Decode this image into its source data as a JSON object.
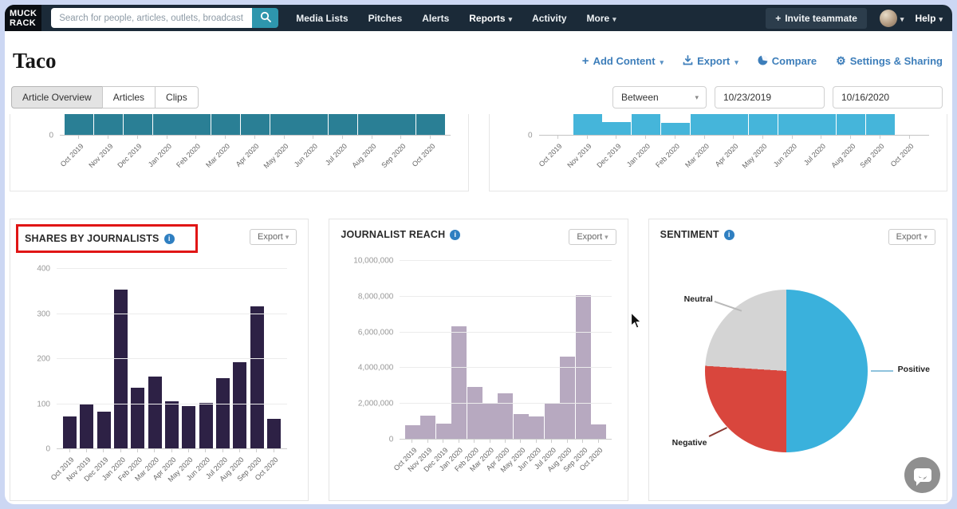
{
  "navbar": {
    "logo_line1": "MUCK",
    "logo_line2": "RACK",
    "search": {
      "placeholder": "Search for people, articles, outlets, broadcast"
    },
    "items": [
      {
        "label": "Media Lists",
        "dropdown": false
      },
      {
        "label": "Pitches",
        "dropdown": false
      },
      {
        "label": "Alerts",
        "dropdown": false
      },
      {
        "label": "Reports",
        "dropdown": true
      },
      {
        "label": "Activity",
        "dropdown": false
      },
      {
        "label": "More",
        "dropdown": true
      }
    ],
    "invite_label": "Invite teammate",
    "help_label": "Help"
  },
  "header": {
    "title": "Taco",
    "actions": [
      {
        "label": "Add Content",
        "icon": "plus-icon",
        "dropdown": true
      },
      {
        "label": "Export",
        "icon": "download-icon",
        "dropdown": true
      },
      {
        "label": "Compare",
        "icon": "pie-icon",
        "dropdown": false
      },
      {
        "label": "Settings & Sharing",
        "icon": "gear-icon",
        "dropdown": false
      }
    ]
  },
  "tabs": [
    {
      "label": "Article Overview",
      "active": true
    },
    {
      "label": "Articles",
      "active": false
    },
    {
      "label": "Clips",
      "active": false
    }
  ],
  "filters": {
    "range_operator": "Between",
    "start_date": "10/23/2019",
    "end_date": "10/16/2020"
  },
  "export_button_label": "Export",
  "months": [
    "Oct 2019",
    "Nov 2019",
    "Dec 2019",
    "Jan 2020",
    "Feb 2020",
    "Mar 2020",
    "Apr 2020",
    "May 2020",
    "Jun 2020",
    "Jul 2020",
    "Aug 2020",
    "Sep 2020",
    "Oct 2020"
  ],
  "chart_data": [
    {
      "type": "bar",
      "title": "",
      "note": "top chart card scrolled - only bottoms of bars visible, values are relative visible heights",
      "clipped_top": true,
      "ylim": [
        0,
        1
      ],
      "yticks": [
        {
          "label": "0",
          "value": 0
        }
      ],
      "values": [
        1,
        1,
        1,
        1,
        1,
        1,
        1,
        1,
        1,
        1,
        1,
        1,
        1
      ],
      "color": "#2a7f95"
    },
    {
      "type": "bar",
      "title": "",
      "note": "top chart card scrolled - only bottoms of bars visible, values are relative visible heights",
      "clipped_top": true,
      "ylim": [
        0,
        1
      ],
      "yticks": [
        {
          "label": "0",
          "value": 0
        }
      ],
      "values": [
        0,
        1,
        0.58,
        1,
        0.54,
        1,
        1,
        1,
        1,
        1,
        1,
        1,
        0
      ],
      "color": "#45b5da"
    },
    {
      "type": "bar",
      "title": "SHARES BY JOURNALISTS",
      "ylim": [
        0,
        400
      ],
      "yticks": [
        {
          "label": "0",
          "value": 0
        },
        {
          "label": "100",
          "value": 100
        },
        {
          "label": "200",
          "value": 200
        },
        {
          "label": "300",
          "value": 300
        },
        {
          "label": "400",
          "value": 400
        }
      ],
      "values": [
        70,
        98,
        82,
        352,
        135,
        160,
        105,
        93,
        100,
        155,
        192,
        315,
        65
      ],
      "color": "#2d2145"
    },
    {
      "type": "bar",
      "title": "JOURNALIST REACH",
      "ylim": [
        0,
        10000000
      ],
      "yticks": [
        {
          "label": "0",
          "value": 0
        },
        {
          "label": "2,000,000",
          "value": 2000000
        },
        {
          "label": "4,000,000",
          "value": 4000000
        },
        {
          "label": "6,000,000",
          "value": 6000000
        },
        {
          "label": "8,000,000",
          "value": 8000000
        },
        {
          "label": "10,000,000",
          "value": 10000000
        }
      ],
      "values": [
        750000,
        1300000,
        850000,
        6300000,
        2900000,
        2000000,
        2550000,
        1400000,
        1250000,
        2000000,
        4600000,
        8050000,
        800000
      ],
      "color": "#b7a9c0"
    },
    {
      "type": "pie",
      "title": "SENTIMENT",
      "slices": [
        {
          "label": "Positive",
          "value": 50,
          "color": "#3ab1dc"
        },
        {
          "label": "Negative",
          "value": 26,
          "color": "#d9463d"
        },
        {
          "label": "Neutral",
          "value": 24,
          "color": "#d4d4d4"
        }
      ]
    }
  ]
}
